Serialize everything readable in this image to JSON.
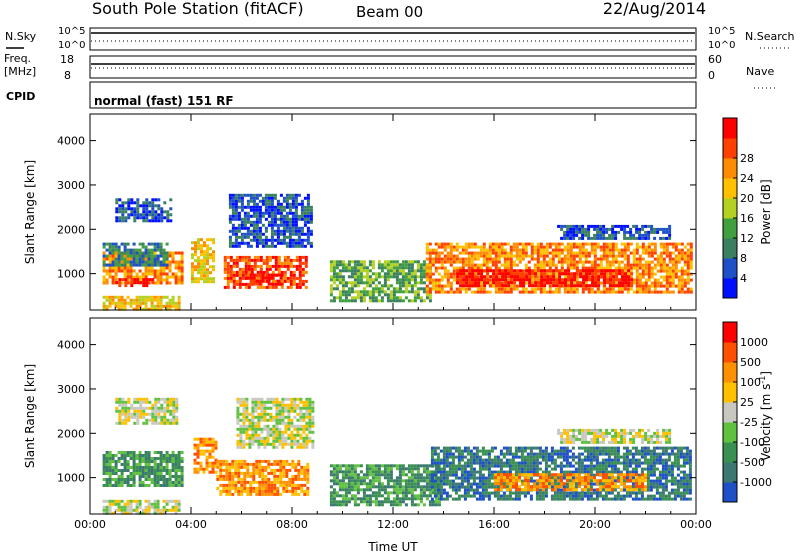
{
  "header": {
    "title": "South Pole Station (fitACF)",
    "beam": "Beam 00",
    "date": "22/Aug/2014"
  },
  "status_panels": {
    "nsky_label": "N.Sky",
    "nsearch_label": "N.Search",
    "log_ticks": [
      "10^5",
      "10^0"
    ],
    "freq_label": "Freq.",
    "freq_unit": "[MHz]",
    "freq_ticks": [
      "18",
      "8"
    ],
    "nave_label": "Nave",
    "nave_ticks": [
      "60",
      "0"
    ],
    "cpid_label": "CPID",
    "cpid_text": "normal (fast) 151 RF"
  },
  "chart_data": [
    {
      "type": "heatmap",
      "name": "power",
      "ylabel": "Slant Range [km]",
      "yticks": [
        1000,
        2000,
        3000,
        4000
      ],
      "ylim": [
        180,
        4600
      ],
      "xlim": [
        0,
        24
      ],
      "colorbar": {
        "label": "Power [dB]",
        "ticks": [
          "4",
          "8",
          "12",
          "16",
          "20",
          "24",
          "28"
        ],
        "colors": [
          "#0010ff",
          "#1e50c8",
          "#3a8060",
          "#40a040",
          "#b4d020",
          "#ffc000",
          "#ff8c00",
          "#ff4000",
          "#ff0000"
        ]
      },
      "regions": [
        {
          "t0": 0.5,
          "t1": 3.6,
          "r0": 800,
          "r1": 1500,
          "level": 6
        },
        {
          "t0": 1.0,
          "t1": 2.5,
          "r0": 700,
          "r1": 900,
          "level": 8
        },
        {
          "t0": 0.5,
          "t1": 3.0,
          "r0": 1200,
          "r1": 1700,
          "level": 2
        },
        {
          "t0": 1.0,
          "t1": 3.2,
          "r0": 2200,
          "r1": 2700,
          "level": 1
        },
        {
          "t0": 4.0,
          "t1": 4.9,
          "r0": 800,
          "r1": 1800,
          "level": 5
        },
        {
          "t0": 5.3,
          "t1": 8.6,
          "r0": 700,
          "r1": 1400,
          "level": 7
        },
        {
          "t0": 6.2,
          "t1": 7.6,
          "r0": 750,
          "r1": 1000,
          "level": 8
        },
        {
          "t0": 5.5,
          "t1": 8.8,
          "r0": 1600,
          "r1": 2800,
          "level": 1
        },
        {
          "t0": 9.5,
          "t1": 13.5,
          "r0": 400,
          "r1": 1300,
          "level": 3
        },
        {
          "t0": 13.3,
          "t1": 23.8,
          "r0": 600,
          "r1": 1700,
          "level": 6
        },
        {
          "t0": 14.5,
          "t1": 21.5,
          "r0": 700,
          "r1": 1100,
          "level": 8
        },
        {
          "t0": 18.5,
          "t1": 23.0,
          "r0": 1800,
          "r1": 2100,
          "level": 1
        },
        {
          "t0": 0.5,
          "t1": 3.5,
          "r0": 180,
          "r1": 500,
          "level": 5
        }
      ]
    },
    {
      "type": "heatmap",
      "name": "velocity",
      "ylabel": "Slant Range [km]",
      "yticks": [
        1000,
        2000,
        3000,
        4000
      ],
      "ylim": [
        180,
        4600
      ],
      "xlim": [
        0,
        24
      ],
      "xticks": [
        "00:00",
        "04:00",
        "08:00",
        "12:00",
        "16:00",
        "20:00",
        "00:00"
      ],
      "xlabel": "Time UT",
      "colorbar": {
        "label": "Velocity [m s",
        "label_sup": "-1",
        "label_end": "]",
        "ticks": [
          "1000",
          "500",
          "100",
          "25",
          "-25",
          "-100",
          "-500",
          "-1000"
        ],
        "colors": [
          "#1e50c8",
          "#3a7870",
          "#3a9050",
          "#60c040",
          "#c8c8c0",
          "#ffc000",
          "#ff9000",
          "#ff5000",
          "#ff0000"
        ]
      },
      "regions": [
        {
          "t0": 0.5,
          "t1": 3.6,
          "r0": 800,
          "r1": 1600,
          "level": 2
        },
        {
          "t0": 1.0,
          "t1": 3.4,
          "r0": 2200,
          "r1": 2800,
          "level": 4
        },
        {
          "t0": 4.1,
          "t1": 5.0,
          "r0": 1100,
          "r1": 1900,
          "level": 6
        },
        {
          "t0": 5.0,
          "t1": 8.6,
          "r0": 600,
          "r1": 1400,
          "level": 6
        },
        {
          "t0": 5.8,
          "t1": 8.8,
          "r0": 1700,
          "r1": 2800,
          "level": 4
        },
        {
          "t0": 9.5,
          "t1": 13.8,
          "r0": 400,
          "r1": 1300,
          "level": 2
        },
        {
          "t0": 13.5,
          "t1": 23.8,
          "r0": 500,
          "r1": 1700,
          "level": 1
        },
        {
          "t0": 16.0,
          "t1": 22.0,
          "r0": 700,
          "r1": 1100,
          "level": 6
        },
        {
          "t0": 18.5,
          "t1": 23.0,
          "r0": 1800,
          "r1": 2100,
          "level": 4
        },
        {
          "t0": 0.5,
          "t1": 3.5,
          "r0": 180,
          "r1": 500,
          "level": 4
        }
      ]
    }
  ]
}
